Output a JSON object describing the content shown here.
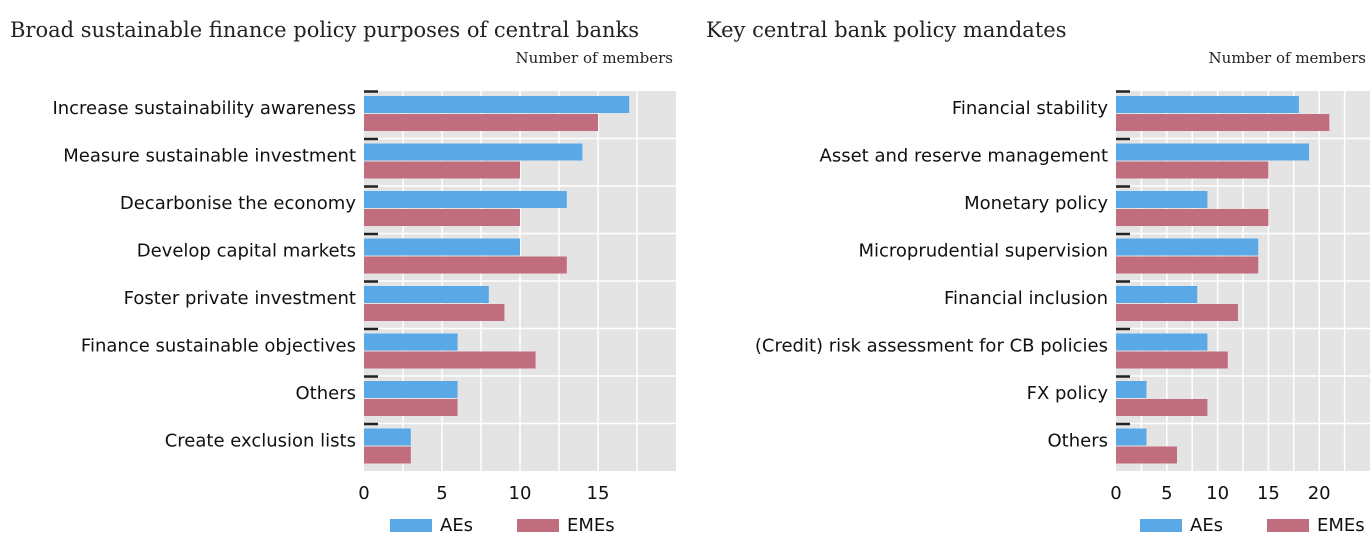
{
  "chart_data": [
    {
      "type": "bar",
      "orientation": "horizontal",
      "title": "Broad sustainable finance policy purposes of central banks",
      "unit_label": "Number of members",
      "categories": [
        "Increase sustainability awareness",
        "Measure sustainable investment",
        "Decarbonise the economy",
        "Develop capital markets",
        "Foster private investment",
        "Finance sustainable objectives",
        "Others",
        "Create exclusion lists"
      ],
      "series": [
        {
          "name": "AEs",
          "color": "#5aa9e6",
          "values": [
            17,
            14,
            13,
            10,
            8,
            6,
            6,
            3
          ]
        },
        {
          "name": "EMEs",
          "color": "#c06e7e",
          "values": [
            15,
            10,
            10,
            13,
            9,
            11,
            6,
            3
          ]
        }
      ],
      "xlim": [
        0,
        20
      ],
      "xticks": [
        "0",
        "5",
        "10",
        "15"
      ],
      "grid": true,
      "legend": "bottom"
    },
    {
      "type": "bar",
      "orientation": "horizontal",
      "title": "Key central bank policy mandates",
      "unit_label": "Number of members",
      "categories": [
        "Financial stability",
        "Asset and reserve management",
        "Monetary policy",
        "Microprudential supervision",
        "Financial inclusion",
        "(Credit) risk assessment for CB policies",
        "FX policy",
        "Others"
      ],
      "series": [
        {
          "name": "AEs",
          "color": "#5aa9e6",
          "values": [
            18,
            19,
            9,
            14,
            8,
            9,
            3,
            3
          ]
        },
        {
          "name": "EMEs",
          "color": "#c06e7e",
          "values": [
            21,
            15,
            15,
            14,
            12,
            11,
            9,
            6
          ]
        }
      ],
      "xlim": [
        0,
        25
      ],
      "xticks": [
        "0",
        "5",
        "10",
        "15",
        "20"
      ],
      "grid": true,
      "legend": "bottom"
    }
  ]
}
